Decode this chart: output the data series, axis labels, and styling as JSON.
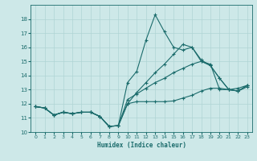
{
  "xlabel": "Humidex (Indice chaleur)",
  "bg_color": "#cde8e8",
  "line_color": "#1a6b6b",
  "grid_color": "#b0d4d4",
  "xlim": [
    -0.5,
    23.5
  ],
  "ylim": [
    10,
    19
  ],
  "yticks": [
    10,
    11,
    12,
    13,
    14,
    15,
    16,
    17,
    18
  ],
  "xticks": [
    0,
    1,
    2,
    3,
    4,
    5,
    6,
    7,
    8,
    9,
    10,
    11,
    12,
    13,
    14,
    15,
    16,
    17,
    18,
    19,
    20,
    21,
    22,
    23
  ],
  "lines": [
    {
      "x": [
        0,
        1,
        2,
        3,
        4,
        5,
        6,
        7,
        8,
        9,
        10,
        11,
        12,
        13,
        14,
        15,
        16,
        17,
        18,
        19,
        20,
        21,
        22,
        23
      ],
      "y": [
        11.8,
        11.7,
        11.2,
        11.4,
        11.3,
        11.4,
        11.4,
        11.1,
        10.4,
        10.45,
        12.0,
        12.15,
        12.15,
        12.15,
        12.15,
        12.2,
        12.4,
        12.6,
        12.9,
        13.1,
        13.1,
        13.0,
        13.1,
        13.3
      ]
    },
    {
      "x": [
        0,
        1,
        2,
        3,
        4,
        5,
        6,
        7,
        8,
        9,
        10,
        11,
        12,
        13,
        14,
        15,
        16,
        17,
        18,
        19,
        20,
        21,
        22,
        23
      ],
      "y": [
        11.8,
        11.7,
        11.2,
        11.4,
        11.3,
        11.4,
        11.4,
        11.1,
        10.4,
        10.45,
        12.3,
        12.7,
        13.1,
        13.5,
        13.8,
        14.2,
        14.5,
        14.8,
        15.0,
        14.8,
        13.0,
        13.0,
        12.9,
        13.2
      ]
    },
    {
      "x": [
        0,
        1,
        2,
        3,
        4,
        5,
        6,
        7,
        8,
        9,
        10,
        11,
        12,
        13,
        14,
        15,
        16,
        17,
        18,
        19,
        20,
        21,
        22,
        23
      ],
      "y": [
        11.8,
        11.7,
        11.2,
        11.4,
        11.3,
        11.4,
        11.4,
        11.1,
        10.4,
        10.45,
        13.5,
        14.3,
        16.5,
        18.3,
        17.1,
        16.0,
        15.8,
        16.0,
        15.0,
        14.7,
        13.8,
        13.0,
        12.9,
        13.3
      ]
    },
    {
      "x": [
        0,
        1,
        2,
        3,
        4,
        5,
        6,
        7,
        8,
        9,
        10,
        11,
        12,
        13,
        14,
        15,
        16,
        17,
        18,
        19,
        20,
        21,
        22,
        23
      ],
      "y": [
        11.8,
        11.7,
        11.2,
        11.4,
        11.3,
        11.4,
        11.4,
        11.1,
        10.4,
        10.45,
        12.0,
        12.8,
        13.5,
        14.2,
        14.8,
        15.5,
        16.2,
        16.0,
        15.1,
        14.7,
        13.8,
        13.0,
        12.9,
        13.3
      ]
    }
  ]
}
